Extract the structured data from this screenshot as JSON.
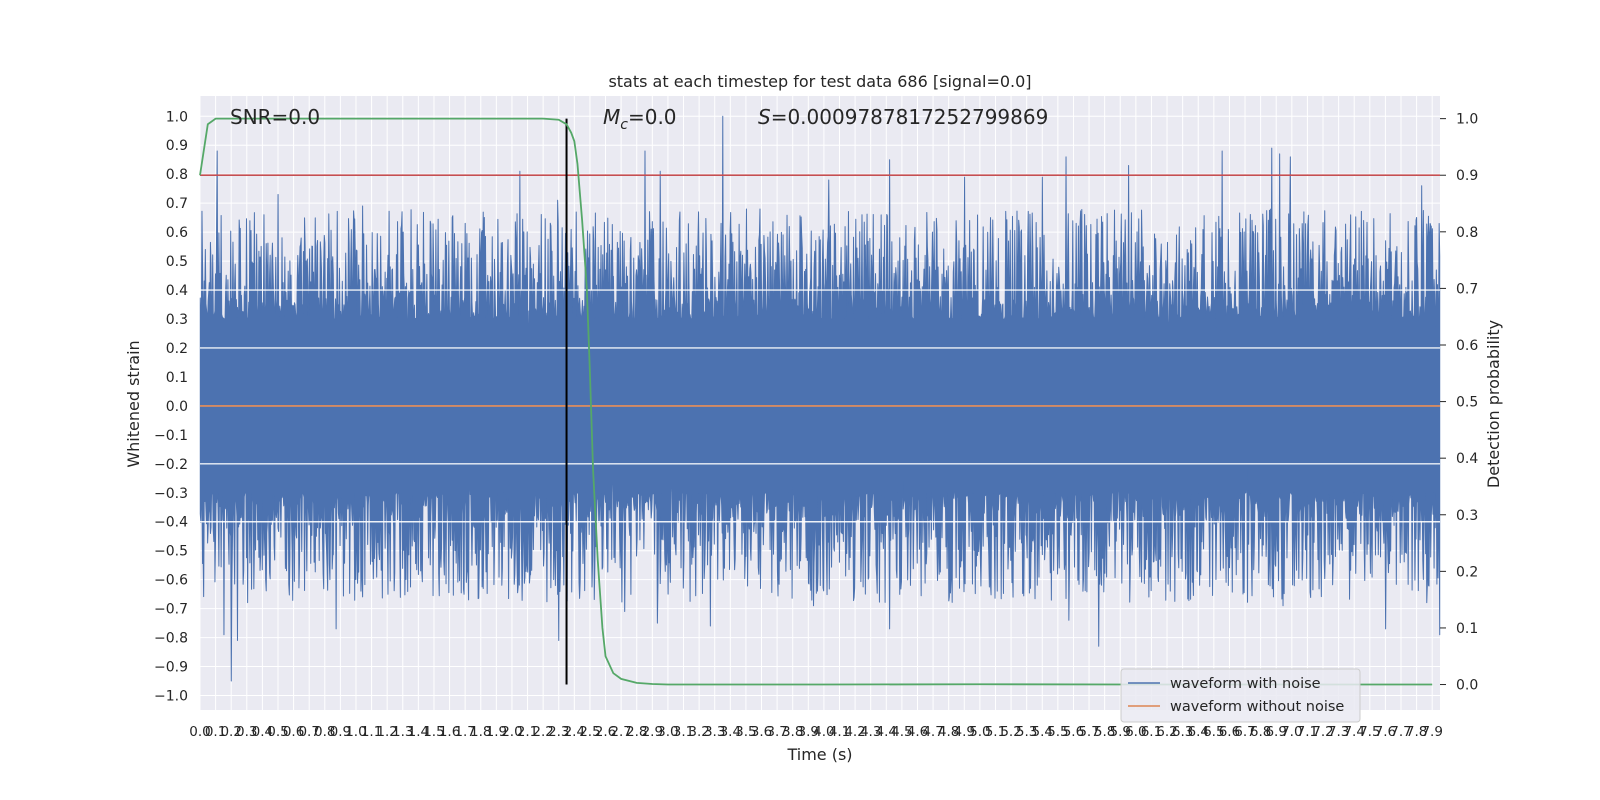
{
  "chart_data": {
    "type": "line",
    "title": "stats at each timestep for test data 686 [signal=0.0]",
    "xlabel": "Time (s)",
    "ylabel": "Whitened strain",
    "ylabel_right": "Detection probability",
    "xlim": [
      0.0,
      7.95
    ],
    "ylim": [
      -1.05,
      1.07
    ],
    "ylim_right": [
      -0.045,
      1.04
    ],
    "x_ticks": [
      0.0,
      0.1,
      0.2,
      0.3,
      0.4,
      0.5,
      0.6,
      0.7,
      0.8,
      0.9,
      1.0,
      1.1,
      1.2,
      1.3,
      1.4,
      1.5,
      1.6,
      1.7,
      1.8,
      1.9,
      2.0,
      2.1,
      2.2,
      2.3,
      2.4,
      2.5,
      2.6,
      2.7,
      2.8,
      2.9,
      3.0,
      3.1,
      3.2,
      3.3,
      3.4,
      3.5,
      3.6,
      3.7,
      3.8,
      3.9,
      4.0,
      4.1,
      4.2,
      4.3,
      4.4,
      4.5,
      4.6,
      4.7,
      4.8,
      4.9,
      5.0,
      5.1,
      5.2,
      5.3,
      5.4,
      5.5,
      5.6,
      5.7,
      5.8,
      5.9,
      6.0,
      6.1,
      6.2,
      6.3,
      6.4,
      6.5,
      6.6,
      6.7,
      6.8,
      6.9,
      7.0,
      7.1,
      7.2,
      7.3,
      7.4,
      7.5,
      7.6,
      7.7,
      7.8,
      7.9
    ],
    "y_ticks": [
      1.0,
      0.9,
      0.8,
      0.7,
      0.6,
      0.5,
      0.4,
      0.3,
      0.2,
      0.1,
      0.0,
      -0.1,
      -0.2,
      -0.3,
      -0.4,
      -0.5,
      -0.6,
      -0.7,
      -0.8,
      -0.9,
      -1.0
    ],
    "y_tick_labels": [
      "1.0",
      "0.9",
      "0.8",
      "0.7",
      "0.6",
      "0.5",
      "0.4",
      "0.3",
      "0.2",
      "0.1",
      "0.0",
      "−0.1",
      "−0.2",
      "−0.3",
      "−0.4",
      "−0.5",
      "−0.6",
      "−0.7",
      "−0.8",
      "−0.9",
      "−1.0"
    ],
    "y_right_ticks": [
      1.0,
      0.9,
      0.8,
      0.7,
      0.6,
      0.5,
      0.4,
      0.3,
      0.2,
      0.1,
      0.0
    ],
    "y_right_tick_labels": [
      "1.0",
      "0.9",
      "0.8",
      "0.7",
      "0.6",
      "0.5",
      "0.4",
      "0.3",
      "0.2",
      "0.1",
      "0.0"
    ],
    "annotations": {
      "snr": "SNR=0.0",
      "mc_symbol": "M",
      "mc_sub": "c",
      "mc_value": "=0.0",
      "s_symbol": "S",
      "s_value": "=0.0009787817252799869"
    },
    "series": [
      {
        "name": "waveform with noise",
        "color": "#4c72b0",
        "kind": "noise",
        "peak_positive": [
          [
            0.11,
            0.88
          ],
          [
            0.41,
            0.66
          ],
          [
            0.5,
            0.73
          ],
          [
            1.04,
            0.69
          ],
          [
            1.3,
            0.6
          ],
          [
            1.7,
            0.63
          ],
          [
            2.05,
            0.81
          ],
          [
            2.29,
            0.71
          ],
          [
            2.85,
            0.88
          ],
          [
            2.95,
            0.81
          ],
          [
            3.35,
            1.0
          ],
          [
            3.5,
            0.68
          ],
          [
            4.03,
            0.78
          ],
          [
            4.42,
            0.85
          ],
          [
            4.9,
            0.79
          ],
          [
            5.4,
            0.79
          ],
          [
            5.55,
            0.86
          ],
          [
            5.95,
            0.83
          ],
          [
            6.55,
            0.88
          ],
          [
            6.87,
            0.89
          ],
          [
            6.92,
            0.87
          ],
          [
            6.99,
            0.86
          ],
          [
            7.83,
            0.76
          ]
        ],
        "peak_negative": [
          [
            0.2,
            -0.95
          ],
          [
            0.15,
            -0.79
          ],
          [
            0.24,
            -0.81
          ],
          [
            0.87,
            -0.77
          ],
          [
            2.3,
            -0.81
          ],
          [
            2.72,
            -0.71
          ],
          [
            2.93,
            -0.75
          ],
          [
            3.27,
            -0.76
          ],
          [
            3.93,
            -0.69
          ],
          [
            4.42,
            -0.77
          ],
          [
            5.57,
            -0.74
          ],
          [
            5.76,
            -0.83
          ],
          [
            6.94,
            -0.69
          ],
          [
            7.6,
            -0.77
          ],
          [
            7.95,
            -0.79
          ]
        ]
      },
      {
        "name": "waveform without noise",
        "color": "#dd8452",
        "x": [
          0.0,
          7.95
        ],
        "y": [
          0.0,
          0.0
        ]
      },
      {
        "name": "detection probability",
        "color": "#55a868",
        "axis": "right",
        "x": [
          0.0,
          0.05,
          0.1,
          0.2,
          0.5,
          1.0,
          1.5,
          2.0,
          2.2,
          2.3,
          2.35,
          2.38,
          2.4,
          2.42,
          2.45,
          2.48,
          2.5,
          2.52,
          2.55,
          2.58,
          2.6,
          2.65,
          2.7,
          2.8,
          2.9,
          3.0,
          3.5,
          4.0,
          5.0,
          6.0,
          7.0,
          7.9
        ],
        "y": [
          0.9,
          0.99,
          1.0,
          1.0,
          1.0,
          1.0,
          1.0,
          1.0,
          1.0,
          0.998,
          0.99,
          0.975,
          0.96,
          0.92,
          0.82,
          0.7,
          0.55,
          0.38,
          0.22,
          0.1,
          0.05,
          0.02,
          0.01,
          0.003,
          0.001,
          0.0,
          0.0,
          0.0,
          0.0005,
          0.0,
          0.0,
          0.0
        ]
      }
    ],
    "hlines": [
      {
        "y_right": 0.9,
        "color": "#c44e52"
      }
    ],
    "vlines": [
      {
        "x": 2.35,
        "color": "#000000"
      }
    ],
    "legend": {
      "placement": "lower-right",
      "entries": [
        {
          "label": "waveform with noise",
          "color": "#4c72b0"
        },
        {
          "label": "waveform without noise",
          "color": "#dd8452"
        }
      ]
    },
    "grid": true,
    "colors": {
      "background": "#eaeaf2",
      "grid": "#ffffff"
    }
  }
}
